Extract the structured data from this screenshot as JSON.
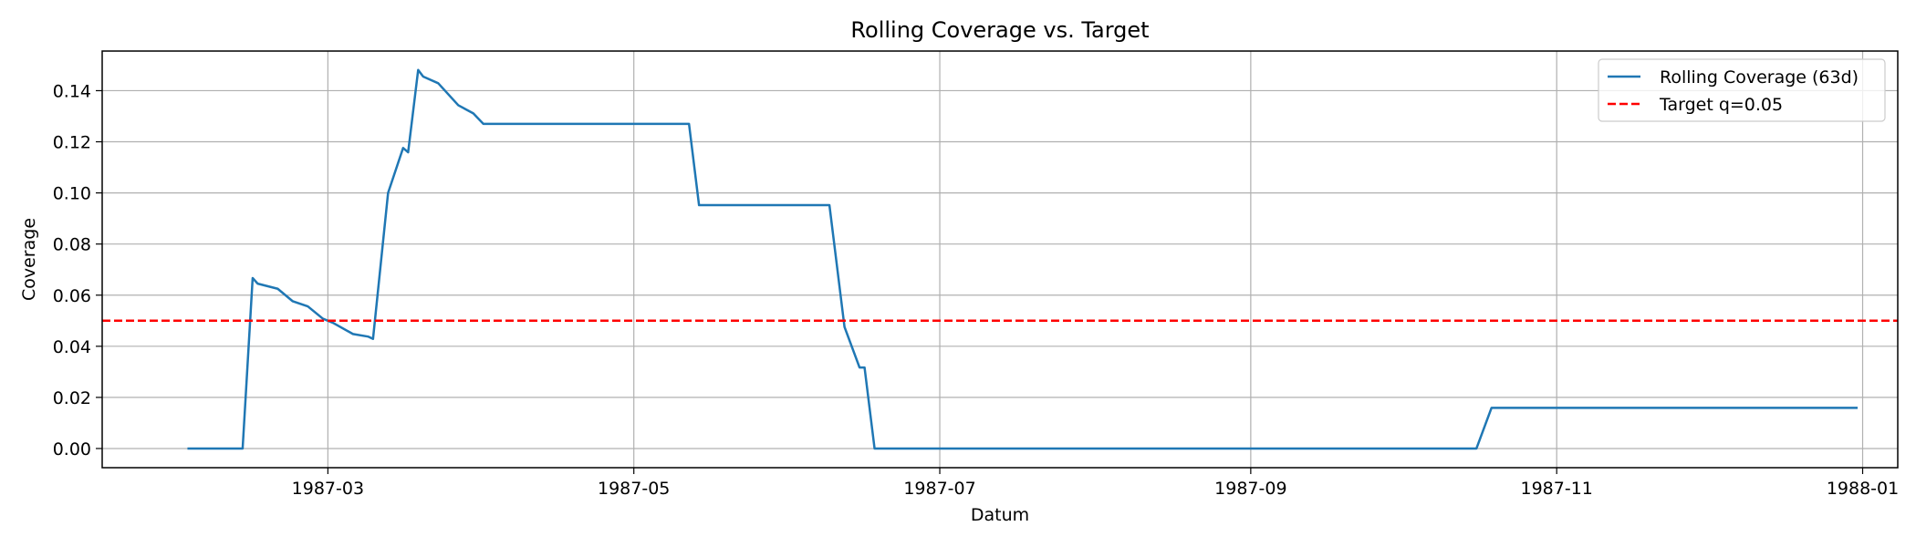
{
  "chart_data": {
    "type": "line",
    "title": "Rolling Coverage vs. Target",
    "xlabel": "Datum",
    "ylabel": "Coverage",
    "x_ticks": [
      "1987-03",
      "1987-05",
      "1987-07",
      "1987-09",
      "1987-11",
      "1988-01"
    ],
    "y_ticks": [
      "0.00",
      "0.02",
      "0.04",
      "0.06",
      "0.08",
      "0.10",
      "0.12",
      "0.14"
    ],
    "xlim": [
      "1987-01-15",
      "1988-01-08"
    ],
    "ylim": [
      -0.0075,
      0.1555
    ],
    "grid": true,
    "legend_position": "top-right",
    "series": [
      {
        "name": "Rolling Coverage (63d)",
        "color": "#1f77b4",
        "style": "solid",
        "points": [
          [
            "1987-02-01",
            0.0
          ],
          [
            "1987-02-12",
            0.0
          ],
          [
            "1987-02-14",
            0.0667
          ],
          [
            "1987-02-15",
            0.0645
          ],
          [
            "1987-02-19",
            0.0625
          ],
          [
            "1987-02-22",
            0.0576
          ],
          [
            "1987-02-25",
            0.0556
          ],
          [
            "1987-02-28",
            0.0508
          ],
          [
            "1987-03-02",
            0.0492
          ],
          [
            "1987-03-06",
            0.0448
          ],
          [
            "1987-03-09",
            0.0438
          ],
          [
            "1987-03-10",
            0.0429
          ],
          [
            "1987-03-13",
            0.1
          ],
          [
            "1987-03-16",
            0.1176
          ],
          [
            "1987-03-17",
            0.1159
          ],
          [
            "1987-03-19",
            0.1481
          ],
          [
            "1987-03-20",
            0.1455
          ],
          [
            "1987-03-23",
            0.1429
          ],
          [
            "1987-03-27",
            0.1343
          ],
          [
            "1987-03-30",
            0.1311
          ],
          [
            "1987-04-01",
            0.127
          ],
          [
            "1987-05-12",
            0.127
          ],
          [
            "1987-05-14",
            0.0952
          ],
          [
            "1987-06-09",
            0.0952
          ],
          [
            "1987-06-12",
            0.0476
          ],
          [
            "1987-06-15",
            0.0317
          ],
          [
            "1987-06-16",
            0.0317
          ],
          [
            "1987-06-18",
            0.0
          ],
          [
            "1987-10-16",
            0.0
          ],
          [
            "1987-10-19",
            0.0159
          ],
          [
            "1987-12-31",
            0.0159
          ]
        ]
      },
      {
        "name": "Target q=0.05",
        "color": "#ff0000",
        "style": "dashed",
        "y": 0.05
      }
    ]
  }
}
